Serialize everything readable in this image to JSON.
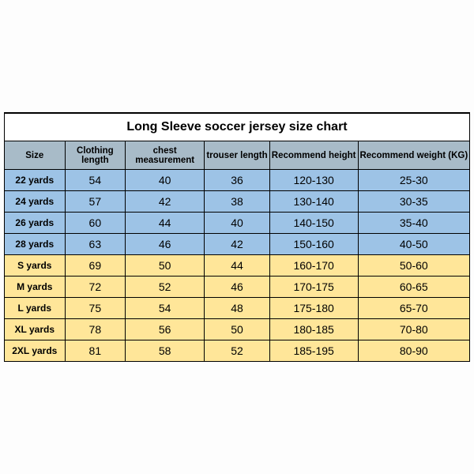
{
  "table": {
    "title": "Long Sleeve soccer jersey size chart",
    "columns": [
      "Size",
      "Clothing length",
      "chest measurement",
      "trouser length",
      "Recommend height",
      "Recommend weight (KG)"
    ],
    "rows": [
      {
        "color": "blue",
        "cells": [
          "22 yards",
          "54",
          "40",
          "36",
          "120-130",
          "25-30"
        ]
      },
      {
        "color": "blue",
        "cells": [
          "24 yards",
          "57",
          "42",
          "38",
          "130-140",
          "30-35"
        ]
      },
      {
        "color": "blue",
        "cells": [
          "26 yards",
          "60",
          "44",
          "40",
          "140-150",
          "35-40"
        ]
      },
      {
        "color": "blue",
        "cells": [
          "28 yards",
          "63",
          "46",
          "42",
          "150-160",
          "40-50"
        ]
      },
      {
        "color": "yellow",
        "cells": [
          "S yards",
          "69",
          "50",
          "44",
          "160-170",
          "50-60"
        ]
      },
      {
        "color": "yellow",
        "cells": [
          "M yards",
          "72",
          "52",
          "46",
          "170-175",
          "60-65"
        ]
      },
      {
        "color": "yellow",
        "cells": [
          "L yards",
          "75",
          "54",
          "48",
          "175-180",
          "65-70"
        ]
      },
      {
        "color": "yellow",
        "cells": [
          "XL yards",
          "78",
          "56",
          "50",
          "180-185",
          "70-80"
        ]
      },
      {
        "color": "yellow",
        "cells": [
          "2XL yards",
          "81",
          "58",
          "52",
          "185-195",
          "80-90"
        ]
      }
    ],
    "colors": {
      "header_bg": "#a8bbc8",
      "blue_bg": "#9dc3e6",
      "yellow_bg": "#ffe699",
      "border": "#000000",
      "title_bg": "#ffffff"
    },
    "font": {
      "title_size_pt": 16,
      "header_size_pt": 11.5,
      "cell_size_pt": 14,
      "size_col_size_pt": 12,
      "family": "Arial"
    }
  }
}
